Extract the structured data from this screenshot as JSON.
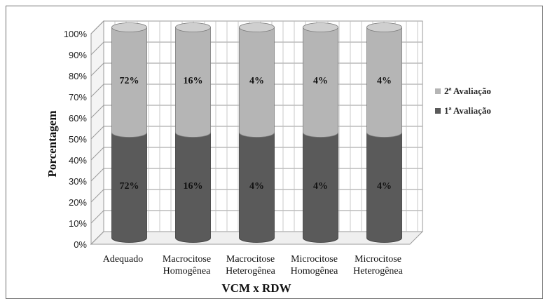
{
  "chart_data": {
    "type": "bar",
    "stacked": true,
    "three_d": true,
    "categories": [
      [
        "Adequado"
      ],
      [
        "Macrocitose",
        "Homogênea"
      ],
      [
        "Macrocitose",
        "Heterogênea"
      ],
      [
        "Microcitose",
        "Homogênea"
      ],
      [
        "Microcitose",
        "Heterogênea"
      ]
    ],
    "series": [
      {
        "name": "1ª Avaliação",
        "values": [
          50,
          50,
          50,
          50,
          50
        ],
        "data_labels": [
          "72%",
          "16%",
          "4%",
          "4%",
          "4%"
        ],
        "color": "#5a5a5a"
      },
      {
        "name": "2ª Avaliação",
        "values": [
          50,
          50,
          50,
          50,
          50
        ],
        "data_labels": [
          "72%",
          "16%",
          "4%",
          "4%",
          "4%"
        ],
        "color": "#b5b5b5"
      }
    ],
    "yticks": [
      "0%",
      "10%",
      "20%",
      "30%",
      "40%",
      "50%",
      "60%",
      "70%",
      "80%",
      "90%",
      "100%"
    ],
    "ylim": [
      0,
      100
    ],
    "xlabel": "VCM x RDW",
    "ylabel": "Porcentagem",
    "grid": true,
    "legend_position": "right"
  }
}
